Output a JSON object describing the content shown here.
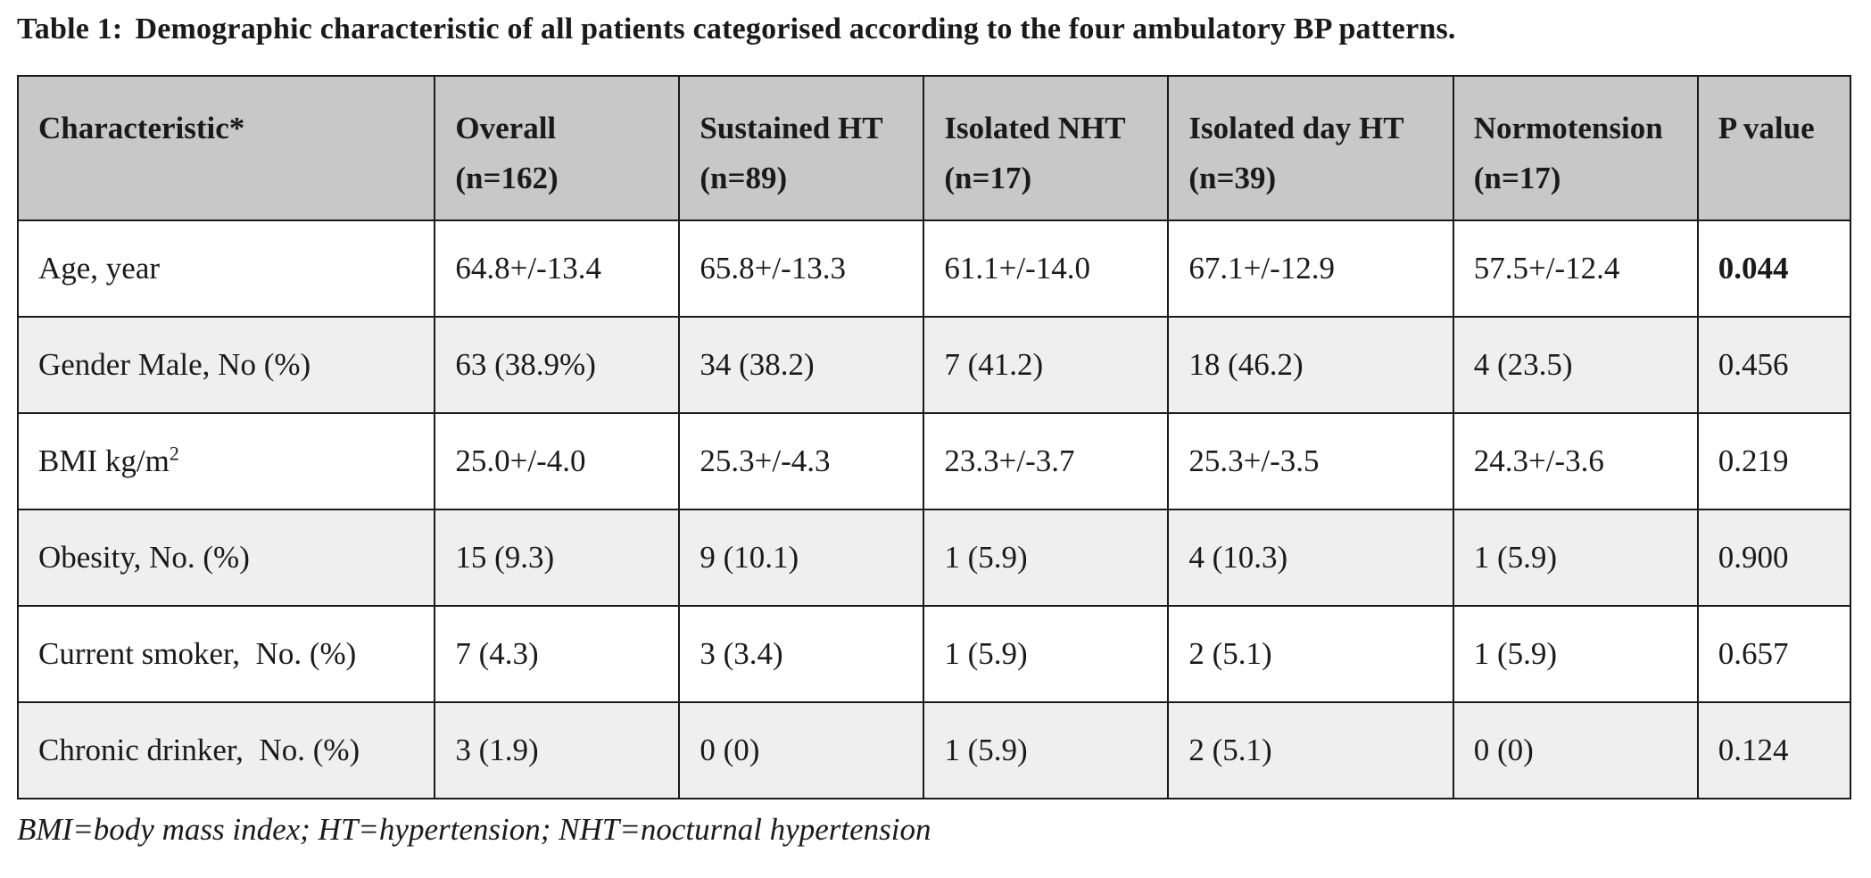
{
  "table": {
    "caption_number": "Table 1:",
    "caption_text": "Demographic characteristic of all patients categorised according to the four ambulatory BP patterns.",
    "headers": [
      {
        "line1": "Characteristic*",
        "line2": ""
      },
      {
        "line1": "Overall",
        "line2": "(n=162)"
      },
      {
        "line1": "Sustained HT",
        "line2": "(n=89)"
      },
      {
        "line1": "Isolated NHT",
        "line2": "(n=17)"
      },
      {
        "line1": "Isolated day HT",
        "line2": "(n=39)"
      },
      {
        "line1": "Normotension",
        "line2": "(n=17)"
      },
      {
        "line1": "P value",
        "line2": ""
      }
    ],
    "rows": [
      {
        "characteristic": "Age, year",
        "overall": "64.8+/-13.4",
        "sustained_ht": "65.8+/-13.3",
        "isolated_nht": "61.1+/-14.0",
        "isolated_day_ht": "67.1+/-12.9",
        "normotension": "57.5+/-12.4",
        "p_value": "0.044",
        "p_bold": true
      },
      {
        "characteristic": "Gender Male, No (%)",
        "overall": "63 (38.9%)",
        "sustained_ht": "34 (38.2)",
        "isolated_nht": "7 (41.2)",
        "isolated_day_ht": "18 (46.2)",
        "normotension": "4 (23.5)",
        "p_value": "0.456"
      },
      {
        "characteristic": "BMI kg/m",
        "characteristic_sup": "2",
        "overall": "25.0+/-4.0",
        "sustained_ht": "25.3+/-4.3",
        "isolated_nht": "23.3+/-3.7",
        "isolated_day_ht": "25.3+/-3.5",
        "normotension": "24.3+/-3.6",
        "p_value": "0.219"
      },
      {
        "characteristic": "Obesity, No. (%)",
        "overall": "15 (9.3)",
        "sustained_ht": "9 (10.1)",
        "isolated_nht": "1 (5.9)",
        "isolated_day_ht": "4 (10.3)",
        "normotension": "1 (5.9)",
        "p_value": "0.900"
      },
      {
        "characteristic": "Current smoker,  No. (%)",
        "overall": "7 (4.3)",
        "sustained_ht": "3 (3.4)",
        "isolated_nht": "1 (5.9)",
        "isolated_day_ht": "2 (5.1)",
        "normotension": "1 (5.9)",
        "p_value": "0.657"
      },
      {
        "characteristic": "Chronic drinker,  No. (%)",
        "overall": "3 (1.9)",
        "sustained_ht": "0 (0)",
        "isolated_nht": "1 (5.9)",
        "isolated_day_ht": "2 (5.1)",
        "normotension": "0 (0)",
        "p_value": "0.124"
      }
    ],
    "footnote": "BMI=body mass index; HT=hypertension; NHT=nocturnal hypertension"
  },
  "colors": {
    "header_bg": "#c8c8c8",
    "shaded_row_bg": "#efefef",
    "border": "#1a1a1a"
  }
}
